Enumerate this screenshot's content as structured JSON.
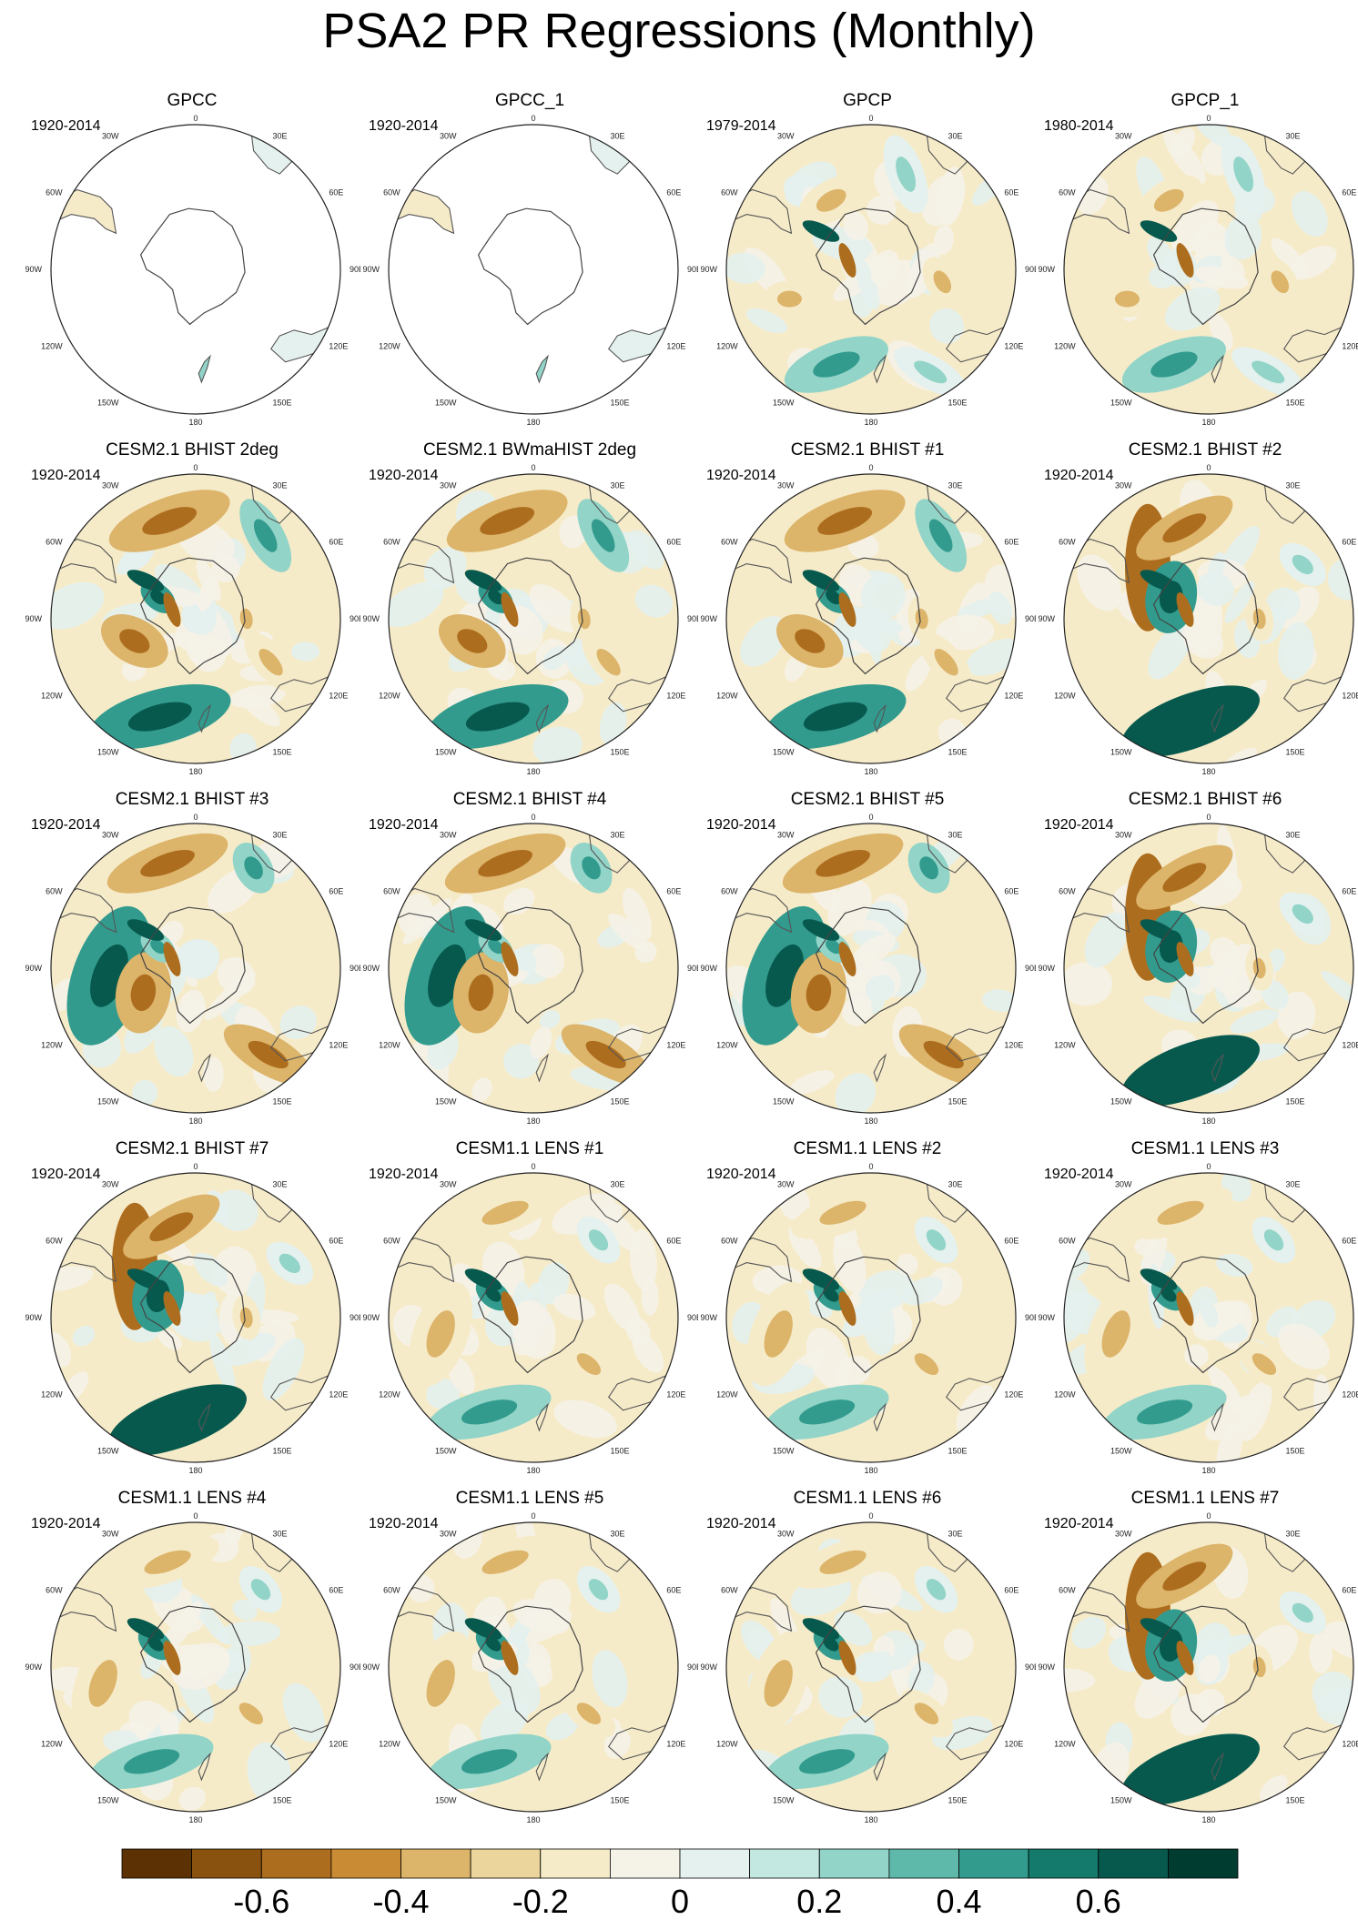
{
  "title": "PSA2 PR Regressions (Monthly)",
  "chart_data": {
    "type": "heatmap",
    "projection": "south polar stereographic",
    "variable": "PR regression on PSA2 (monthly)",
    "longitude_labels": [
      "0",
      "30E",
      "60E",
      "90E",
      "120E",
      "150E",
      "180",
      "150W",
      "120W",
      "90W",
      "60W",
      "30W"
    ],
    "panels": [
      {
        "title": "GPCC",
        "period": "1920-2014"
      },
      {
        "title": "GPCC_1",
        "period": "1920-2014"
      },
      {
        "title": "GPCP",
        "period": "1979-2014"
      },
      {
        "title": "GPCP_1",
        "period": "1980-2014"
      },
      {
        "title": "CESM2.1 BHIST 2deg",
        "period": "1920-2014"
      },
      {
        "title": "CESM2.1 BWmaHIST 2deg",
        "period": "1920-2014"
      },
      {
        "title": "CESM2.1 BHIST #1",
        "period": "1920-2014"
      },
      {
        "title": "CESM2.1 BHIST #2",
        "period": "1920-2014"
      },
      {
        "title": "CESM2.1 BHIST #3",
        "period": "1920-2014"
      },
      {
        "title": "CESM2.1 BHIST #4",
        "period": "1920-2014"
      },
      {
        "title": "CESM2.1 BHIST #5",
        "period": "1920-2014"
      },
      {
        "title": "CESM2.1 BHIST #6",
        "period": "1920-2014"
      },
      {
        "title": "CESM2.1 BHIST #7",
        "period": "1920-2014"
      },
      {
        "title": "CESM1.1 LENS #1",
        "period": "1920-2014"
      },
      {
        "title": "CESM1.1 LENS #2",
        "period": "1920-2014"
      },
      {
        "title": "CESM1.1 LENS #3",
        "period": "1920-2014"
      },
      {
        "title": "CESM1.1 LENS #4",
        "period": "1920-2014"
      },
      {
        "title": "CESM1.1 LENS #5",
        "period": "1920-2014"
      },
      {
        "title": "CESM1.1 LENS #6",
        "period": "1920-2014"
      },
      {
        "title": "CESM1.1 LENS #7",
        "period": "1920-2014"
      }
    ],
    "colorbar": {
      "colors": [
        "#5c3205",
        "#8a520f",
        "#ad6d1e",
        "#c98c35",
        "#dcb46a",
        "#ecd59c",
        "#f6ebc9",
        "#f5f2e8",
        "#e4f1ee",
        "#c3e8e1",
        "#92d4c8",
        "#5fb9ab",
        "#329b8e",
        "#137a6c",
        "#07594d",
        "#003c30"
      ],
      "tick_values": [
        -0.6,
        -0.4,
        -0.2,
        0,
        0.2,
        0.4,
        0.6
      ],
      "tick_labels": [
        "-0.6",
        "-0.4",
        "-0.2",
        "0",
        "0.2",
        "0.4",
        "0.6"
      ],
      "range": [
        -0.8,
        0.8
      ]
    }
  }
}
